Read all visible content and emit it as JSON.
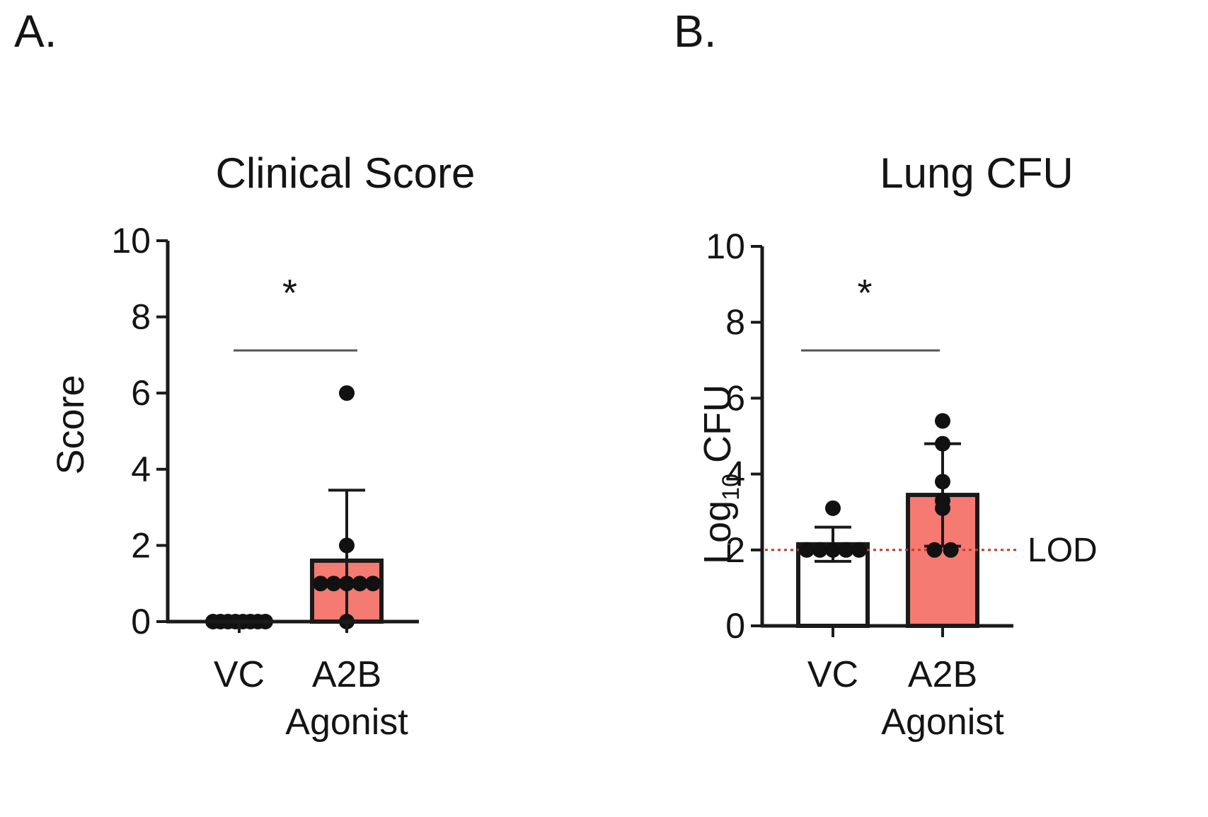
{
  "colors": {
    "a2b_fill": "#f47a72",
    "vc_fill": "#ffffff",
    "axis": "#1a1a1a",
    "lod_line": "#c0392b",
    "bracket": "#555555"
  },
  "chart_data": [
    {
      "panel_label": "A.",
      "type": "bar",
      "title": "Clinical Score",
      "xlabel": "",
      "ylabel": "Score",
      "ylim": [
        0,
        10
      ],
      "yticks": [
        "0",
        "2",
        "4",
        "6",
        "8",
        "10"
      ],
      "categories": [
        {
          "line1": "VC",
          "line2": ""
        },
        {
          "line1": "A2B",
          "line2": "Agonist"
        }
      ],
      "series": [
        {
          "name": "VC",
          "mean": 0,
          "sd": 0,
          "points": [
            0,
            0,
            0,
            0,
            0,
            0,
            0,
            0
          ],
          "fill": "#ffffff"
        },
        {
          "name": "A2B Agonist",
          "mean": 1.6,
          "sd": 1.85,
          "points": [
            6,
            2,
            1,
            1,
            1,
            1,
            1,
            0
          ],
          "fill": "#f47a72"
        }
      ],
      "significance": {
        "text": "*",
        "from": 0,
        "to": 1
      },
      "lod": null
    },
    {
      "panel_label": "B.",
      "type": "bar",
      "title": "Lung CFU",
      "xlabel": "",
      "ylabel_main": "Log",
      "ylabel_sub": "10",
      "ylabel_tail": " CFU",
      "ylim": [
        0,
        10
      ],
      "yticks": [
        "0",
        "2",
        "4",
        "6",
        "8",
        "10"
      ],
      "categories": [
        {
          "line1": "VC",
          "line2": ""
        },
        {
          "line1": "A2B",
          "line2": "Agonist"
        }
      ],
      "series": [
        {
          "name": "VC",
          "mean": 2.15,
          "sd": 0.45,
          "points": [
            3.1,
            2.0,
            2.0,
            2.0,
            2.0,
            2.0
          ],
          "fill": "#ffffff"
        },
        {
          "name": "A2B Agonist",
          "mean": 3.45,
          "sd": 1.35,
          "points": [
            5.4,
            4.8,
            3.8,
            3.3,
            3.1,
            2.0,
            2.0
          ],
          "fill": "#f47a72"
        }
      ],
      "significance": {
        "text": "*",
        "from": 0,
        "to": 1
      },
      "lod": {
        "value": 2,
        "label": "LOD"
      }
    }
  ]
}
